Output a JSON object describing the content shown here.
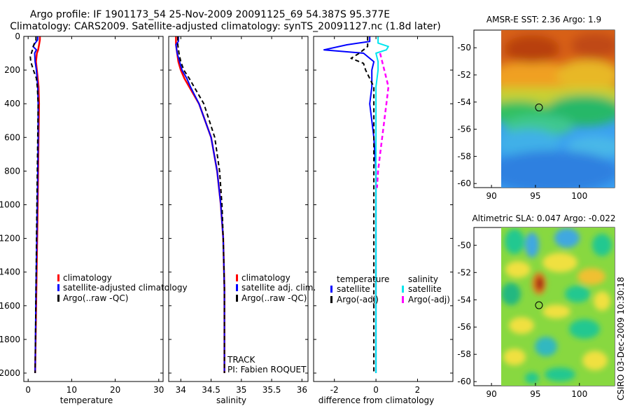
{
  "figure": {
    "title_line1": "Argo profile: IF 1901173_54 25-Nov-2009 20091125_69 54.387S 95.377E",
    "title_line2": "Climatology: CARS2009. Satellite-adjusted climatology: synTS_20091127.nc (1.8d later)",
    "footer": "CSIRO 03-Dec-2009 10:30:18"
  },
  "colors": {
    "climatology": "#ff0000",
    "satellite": "#0000ff",
    "argo": "#000000",
    "sat_salinity": "#00e5ee",
    "argo_salinity": "#ff00ff"
  },
  "chart_data": [
    {
      "type": "line",
      "id": "temperature",
      "xlabel": "temperature",
      "ylabel": "",
      "xlim": [
        -1,
        31
      ],
      "ylim": [
        2050,
        0
      ],
      "xticks": [
        "0",
        "10",
        "20",
        "30"
      ],
      "yticks": [
        "0",
        "200",
        "400",
        "600",
        "800",
        "1000",
        "1200",
        "1400",
        "1600",
        "1800",
        "2000"
      ],
      "legend": [
        "climatology",
        "satellite-adjusted climatology",
        "Argo(..raw -QC)"
      ],
      "series": [
        {
          "name": "climatology",
          "y": [
            0,
            20,
            50,
            80,
            100,
            150,
            200,
            300,
            400,
            600,
            800,
            1000,
            1500,
            2000
          ],
          "x": [
            2.7,
            2.7,
            2.5,
            2.3,
            2.0,
            1.8,
            2.0,
            2.4,
            2.5,
            2.4,
            2.3,
            2.2,
            1.9,
            1.6
          ]
        },
        {
          "name": "satellite-adjusted climatology",
          "y": [
            0,
            20,
            40,
            60,
            80,
            100,
            150,
            200,
            300,
            400,
            600,
            800,
            1000,
            1500,
            2000
          ],
          "x": [
            2.2,
            2.2,
            1.6,
            1.1,
            1.9,
            1.5,
            1.6,
            1.9,
            2.2,
            2.3,
            2.3,
            2.2,
            2.1,
            1.8,
            1.6
          ]
        },
        {
          "name": "Argo(..raw -QC)",
          "y": [
            0,
            20,
            50,
            80,
            120,
            150,
            200,
            250,
            300,
            400,
            600,
            800,
            1000,
            1500,
            2000
          ],
          "x": [
            1.8,
            1.8,
            1.3,
            1.0,
            0.5,
            0.6,
            1.2,
            1.9,
            2.1,
            2.3,
            2.2,
            2.1,
            2.0,
            1.8,
            1.6
          ]
        }
      ]
    },
    {
      "type": "line",
      "id": "salinity",
      "xlabel": "salinity",
      "xlim": [
        33.8,
        36.1
      ],
      "ylim": [
        2050,
        0
      ],
      "xticks": [
        "34",
        "34.5",
        "35",
        "35.5",
        "36"
      ],
      "legend": [
        "climatology",
        "satellite adj. clim.",
        "Argo(..raw -QC)"
      ],
      "annotations": [
        "TRACK",
        "PI: Fabien ROQUET"
      ],
      "series": [
        {
          "name": "climatology",
          "y": [
            0,
            50,
            100,
            150,
            200,
            250,
            300,
            400,
            600,
            800,
            1000,
            1200,
            1500,
            2000
          ],
          "x": [
            33.92,
            33.92,
            33.94,
            33.96,
            34.0,
            34.06,
            34.14,
            34.3,
            34.5,
            34.6,
            34.66,
            34.7,
            34.72,
            34.72
          ]
        },
        {
          "name": "satellite adj. clim.",
          "y": [
            0,
            30,
            50,
            100,
            150,
            200,
            250,
            300,
            400,
            600,
            800,
            1000,
            1200,
            1500,
            2000
          ],
          "x": [
            33.96,
            33.96,
            33.92,
            33.94,
            33.98,
            34.02,
            34.1,
            34.16,
            34.3,
            34.5,
            34.6,
            34.66,
            34.7,
            34.72,
            34.72
          ]
        },
        {
          "name": "Argo(..raw -QC)",
          "y": [
            0,
            50,
            100,
            150,
            200,
            250,
            300,
            400,
            600,
            800,
            1000,
            1200,
            1500,
            2000
          ],
          "x": [
            33.95,
            33.95,
            33.97,
            34.0,
            34.05,
            34.14,
            34.22,
            34.38,
            34.56,
            34.64,
            34.68,
            34.7,
            34.72,
            34.72
          ]
        }
      ]
    },
    {
      "type": "line",
      "id": "difference",
      "xlabel": "difference from climatology",
      "xlim": [
        -3,
        3.7
      ],
      "ylim": [
        2050,
        0
      ],
      "xticks": [
        "-2",
        "0",
        "2"
      ],
      "legend_titles": [
        "temperature",
        "salinity"
      ],
      "legend": [
        "satellite",
        "Argo(-adj)",
        "satellite",
        "Argo(-adj)"
      ],
      "series": [
        {
          "name": "temperature satellite",
          "y": [
            0,
            30,
            50,
            80,
            100,
            150,
            200,
            300,
            400,
            600,
            800,
            1000,
            1500,
            2000
          ],
          "x": [
            -0.3,
            -0.3,
            -1.4,
            -2.5,
            -0.6,
            -0.1,
            -0.2,
            -0.2,
            -0.3,
            -0.1,
            0.0,
            0.0,
            0.0,
            0.0
          ]
        },
        {
          "name": "temperature Argo(-adj)",
          "y": [
            0,
            60,
            100,
            130,
            160,
            200,
            250,
            300,
            400,
            600,
            800,
            1000,
            1500,
            2000
          ],
          "x": [
            -0.4,
            -0.4,
            -0.8,
            -1.2,
            -0.6,
            -0.5,
            -0.3,
            -0.1,
            -0.1,
            -0.1,
            -0.1,
            -0.1,
            -0.1,
            -0.1
          ]
        },
        {
          "name": "salinity satellite",
          "y": [
            0,
            40,
            60,
            80,
            100,
            150,
            200,
            300,
            400,
            600,
            800,
            1000,
            1500,
            2000
          ],
          "x": [
            0.1,
            0.1,
            0.6,
            0.5,
            0.0,
            0.1,
            0.1,
            0.0,
            0.0,
            0.0,
            0.0,
            0.0,
            0.0,
            0.0
          ]
        },
        {
          "name": "salinity Argo(-adj)",
          "y": [
            100,
            150,
            200,
            250,
            300,
            400,
            500,
            600,
            700,
            800,
            900
          ],
          "x": [
            0.2,
            0.3,
            0.4,
            0.5,
            0.6,
            0.5,
            0.4,
            0.3,
            0.2,
            0.1,
            0.05
          ]
        }
      ]
    },
    {
      "type": "heatmap",
      "id": "sst-map",
      "title": "AMSR-E SST: 2.36 Argo: 1.9",
      "xlim": [
        88,
        104
      ],
      "ylim": [
        -60.3,
        -48.7
      ],
      "xticks": [
        "90",
        "95",
        "100"
      ],
      "yticks": [
        "-50",
        "-52",
        "-54",
        "-56",
        "-58",
        "-60"
      ],
      "marker": {
        "lon": 95.4,
        "lat": -54.4
      }
    },
    {
      "type": "heatmap",
      "id": "sla-map",
      "title": "Altimetric SLA: 0.047 Argo: -0.022",
      "xlim": [
        88,
        104
      ],
      "ylim": [
        -60.3,
        -48.7
      ],
      "xticks": [
        "90",
        "95",
        "100"
      ],
      "yticks": [
        "-50",
        "-52",
        "-54",
        "-56",
        "-58",
        "-60"
      ],
      "marker": {
        "lon": 95.4,
        "lat": -54.4
      }
    }
  ]
}
